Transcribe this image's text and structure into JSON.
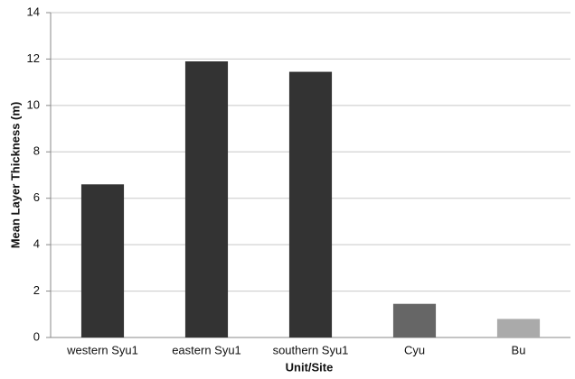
{
  "chart_data": {
    "type": "bar",
    "x_label": "Unit/Site",
    "y_label": "Mean Layer Thickness (m)",
    "categories": [
      "western Syu1",
      "eastern Syu1",
      "southern Syu1",
      "Cyu",
      "Bu"
    ],
    "values": [
      6.6,
      11.9,
      11.45,
      1.45,
      0.8
    ],
    "colors": [
      "#333333",
      "#333333",
      "#333333",
      "#666666",
      "#aaaaaa"
    ],
    "ylim": [
      0,
      14
    ],
    "yticks": [
      0,
      2,
      4,
      6,
      8,
      10,
      12,
      14
    ],
    "grid": true
  }
}
